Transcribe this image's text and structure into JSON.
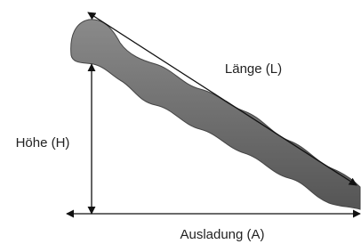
{
  "labels": {
    "length": "Länge (L)",
    "height": "Höhe (H)",
    "reach": "Ausladung (A)"
  }
}
